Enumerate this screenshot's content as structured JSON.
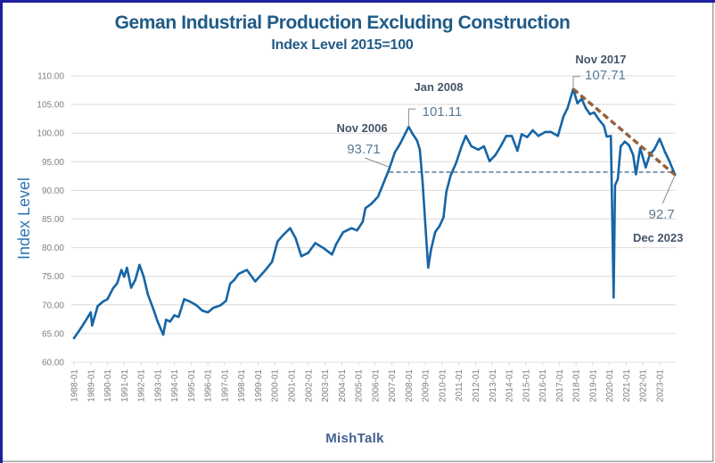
{
  "chart_data": {
    "type": "line",
    "title": "Geman Industrial Production Excluding Construction",
    "subtitle": "Index Level 2015=100",
    "xlabel": "MishTalk",
    "ylabel": "Index Level",
    "ylim": [
      60,
      110
    ],
    "y_ticks": [
      60,
      65,
      70,
      75,
      80,
      85,
      90,
      95,
      100,
      105,
      110
    ],
    "y_tick_labels": [
      "60.00",
      "65.00",
      "70.00",
      "75.00",
      "80.00",
      "85.00",
      "90.00",
      "95.00",
      "100.00",
      "105.00",
      "110.00"
    ],
    "x_range": [
      "1988-01",
      "2023-12"
    ],
    "x_tick_labels": [
      "1988-01",
      "1989-01",
      "1990-01",
      "1991-01",
      "1992-01",
      "1993-01",
      "1994-01",
      "1995-01",
      "1996-01",
      "1997-01",
      "1998-01",
      "1999-01",
      "2000-01",
      "2001-01",
      "2002-01",
      "2003-01",
      "2004-01",
      "2005-01",
      "2006-01",
      "2007-01",
      "2008-01",
      "2009-01",
      "2010-01",
      "2011-01",
      "2012-01",
      "2013-01",
      "2014-01",
      "2015-01",
      "2016-01",
      "2017-01",
      "2018-01",
      "2019-01",
      "2020-01",
      "2021-01",
      "2022-01",
      "2023-01"
    ],
    "grid": true,
    "legend": "none",
    "series": [
      {
        "name": "German Industrial Production Excluding Construction",
        "color": "#1565a6",
        "x": [
          "1988-01",
          "1988-05",
          "1988-09",
          "1989-01",
          "1989-02",
          "1989-06",
          "1989-10",
          "1990-01",
          "1990-05",
          "1990-08",
          "1990-11",
          "1991-01",
          "1991-03",
          "1991-06",
          "1991-09",
          "1991-12",
          "1992-03",
          "1992-06",
          "1992-10",
          "1993-01",
          "1993-05",
          "1993-07",
          "1993-10",
          "1994-01",
          "1994-04",
          "1994-08",
          "1994-12",
          "1995-05",
          "1995-09",
          "1996-01",
          "1996-05",
          "1996-10",
          "1997-02",
          "1997-05",
          "1997-08",
          "1997-11",
          "1998-05",
          "1998-11",
          "1999-06",
          "1999-11",
          "2000-03",
          "2000-07",
          "2000-12",
          "2001-04",
          "2001-08",
          "2002-01",
          "2002-06",
          "2002-12",
          "2003-06",
          "2003-09",
          "2004-02",
          "2004-08",
          "2004-12",
          "2005-04",
          "2005-06",
          "2005-10",
          "2006-03",
          "2006-11",
          "2007-03",
          "2007-07",
          "2008-01",
          "2008-04",
          "2008-07",
          "2008-09",
          "2008-11",
          "2009-01",
          "2009-03",
          "2009-05",
          "2009-08",
          "2009-11",
          "2010-02",
          "2010-04",
          "2010-07",
          "2010-11",
          "2011-03",
          "2011-06",
          "2011-10",
          "2012-03",
          "2012-07",
          "2012-11",
          "2013-03",
          "2013-07",
          "2013-11",
          "2014-03",
          "2014-07",
          "2014-10",
          "2015-02",
          "2015-06",
          "2015-10",
          "2016-03",
          "2016-07",
          "2016-12",
          "2017-04",
          "2017-07",
          "2017-11",
          "2018-02",
          "2018-05",
          "2018-08",
          "2018-11",
          "2019-02",
          "2019-05",
          "2019-09",
          "2019-11",
          "2020-02",
          "2020-04",
          "2020-05",
          "2020-07",
          "2020-09",
          "2020-12",
          "2021-03",
          "2021-06",
          "2021-08",
          "2021-11",
          "2022-03",
          "2022-06",
          "2022-09",
          "2023-01",
          "2023-05",
          "2023-08",
          "2023-12"
        ],
        "values": [
          64.2,
          65.6,
          67.1,
          68.7,
          66.4,
          69.8,
          70.6,
          71.0,
          72.9,
          73.8,
          76.1,
          74.9,
          76.5,
          73.0,
          74.4,
          77.0,
          74.9,
          71.8,
          69.2,
          67.1,
          64.8,
          67.4,
          67.1,
          68.2,
          67.9,
          71.0,
          70.6,
          69.9,
          69.0,
          68.7,
          69.5,
          69.9,
          70.7,
          73.7,
          74.4,
          75.4,
          76.1,
          74.1,
          76.0,
          77.5,
          81.1,
          82.2,
          83.4,
          81.6,
          78.5,
          79.1,
          80.8,
          79.9,
          78.8,
          80.6,
          82.7,
          83.4,
          83.0,
          84.5,
          86.9,
          87.6,
          88.9,
          93.71,
          96.6,
          98.2,
          101.11,
          99.8,
          98.7,
          97.1,
          91.5,
          83.8,
          76.5,
          79.6,
          82.7,
          83.7,
          85.3,
          89.7,
          92.5,
          94.8,
          97.7,
          99.5,
          97.7,
          97.1,
          97.7,
          95.1,
          96.1,
          97.7,
          99.5,
          99.5,
          96.9,
          99.8,
          99.3,
          100.5,
          99.5,
          100.2,
          100.2,
          99.5,
          102.9,
          104.4,
          107.71,
          105.2,
          106.0,
          104.4,
          103.3,
          103.6,
          102.5,
          101.3,
          99.4,
          99.5,
          71.3,
          90.9,
          92.0,
          97.7,
          98.5,
          97.9,
          96.2,
          92.8,
          97.4,
          94.0,
          96.3,
          97.1,
          99.0,
          96.6,
          95.1,
          92.7
        ]
      }
    ],
    "annotations": [
      {
        "date": "2006-11",
        "value": 93.71,
        "label": "Nov 2006",
        "value_label": "93.71"
      },
      {
        "date": "2008-01",
        "value": 101.11,
        "label": "Jan 2008",
        "value_label": "101.11"
      },
      {
        "date": "2017-11",
        "value": 107.71,
        "label": "Nov 2017",
        "value_label": "107.71"
      },
      {
        "date": "2023-12",
        "value": 92.7,
        "label": "Dec 2023",
        "value_label": "92.7"
      }
    ],
    "reference_lines": [
      {
        "kind": "horizontal",
        "value": 93.2,
        "from": "2006-11",
        "to": "2023-12",
        "style": "dashed",
        "color": "#8097ad"
      },
      {
        "kind": "trend",
        "from": {
          "x": "2017-11",
          "y": 107.71
        },
        "to": {
          "x": "2023-12",
          "y": 92.7
        },
        "style": "dashed",
        "color": "#b0642e"
      }
    ]
  },
  "colors": {
    "title": "#1f5b87",
    "axis_title": "#2e75b6",
    "tick_label": "#7f7f7f",
    "gridline": "#dcdcdc",
    "annotation_label": "#44546a",
    "annotation_value": "#5b7a95",
    "leader_line": "#8c8c8c",
    "source": "#44608f",
    "frame_accent": "#1f1f9e",
    "frame_edge": "#a0a0a0"
  }
}
